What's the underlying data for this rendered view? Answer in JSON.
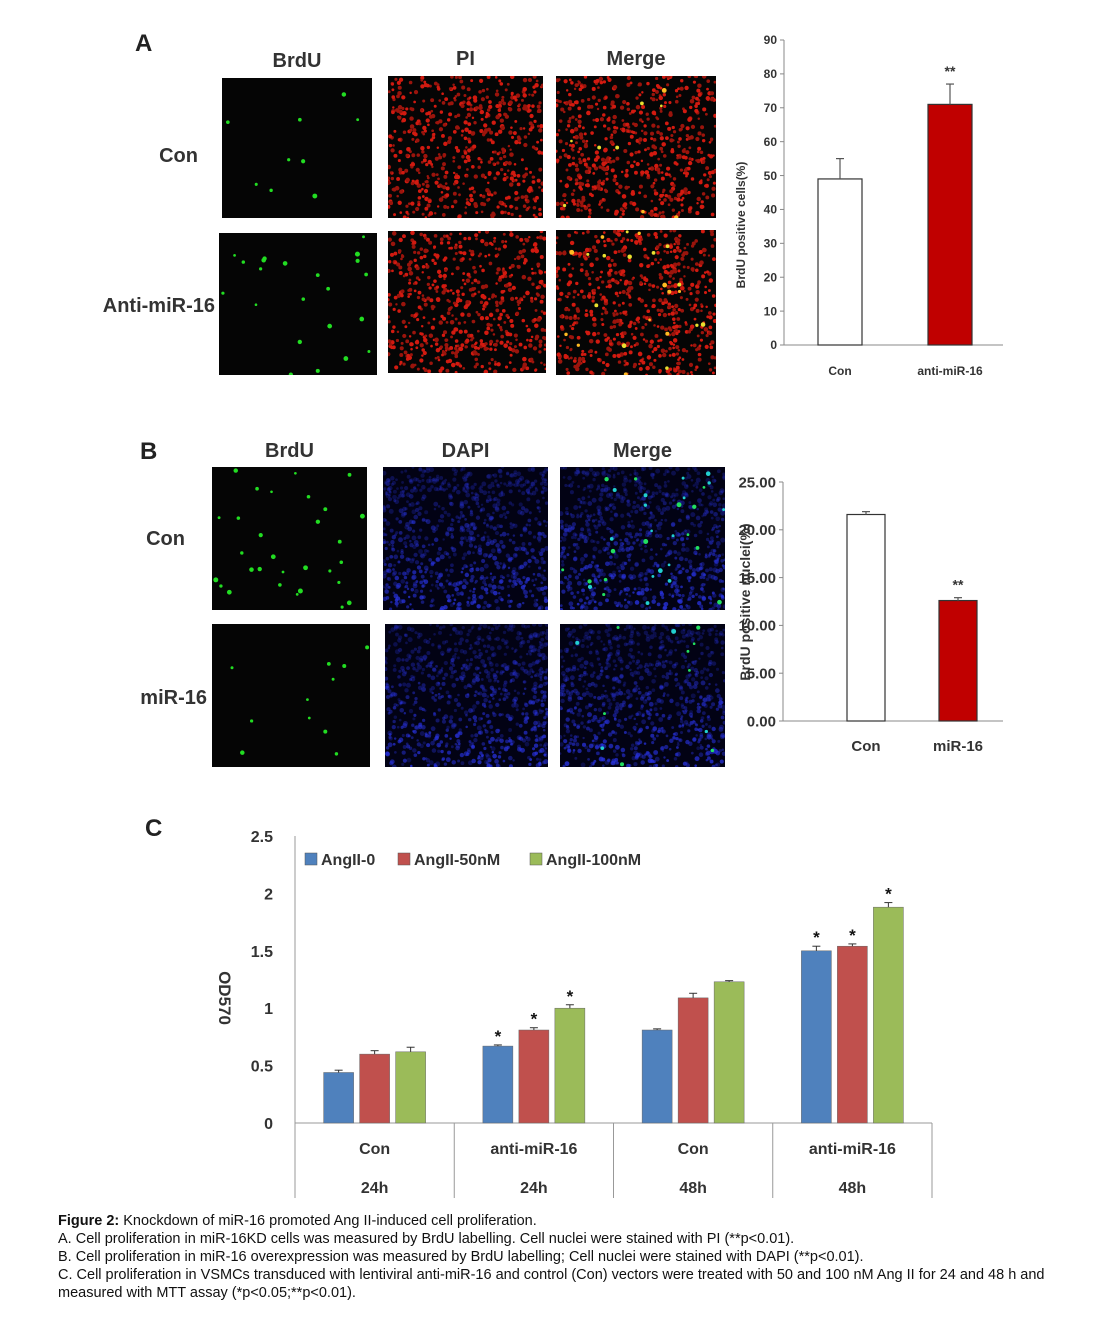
{
  "panelA": {
    "letter": "A",
    "columns": [
      "BrdU",
      "PI",
      "Merge"
    ],
    "rows": [
      "Con",
      "Anti-miR-16"
    ]
  },
  "panelB": {
    "letter": "B",
    "columns": [
      "BrdU",
      "DAPI",
      "Merge"
    ],
    "rows": [
      "Con",
      "miR-16"
    ]
  },
  "panelC": {
    "letter": "C"
  },
  "chart_data": [
    {
      "id": "A",
      "type": "bar",
      "categories": [
        "Con",
        "anti-miR-16"
      ],
      "values": [
        49,
        71
      ],
      "errors": [
        6,
        6
      ],
      "significance": [
        "",
        "**"
      ],
      "bar_colors": [
        "#ffffff",
        "#c00000"
      ],
      "ylabel": "BrdU positive cells(%)",
      "ylim": [
        0,
        90
      ],
      "yticks": [
        "0",
        "10",
        "20",
        "30",
        "40",
        "50",
        "60",
        "70",
        "80",
        "90"
      ],
      "grid": false
    },
    {
      "id": "B",
      "type": "bar",
      "categories": [
        "Con",
        "miR-16"
      ],
      "values": [
        21.6,
        12.6
      ],
      "errors": [
        0.3,
        0.3
      ],
      "significance": [
        "",
        "**"
      ],
      "bar_colors": [
        "#ffffff",
        "#c00000"
      ],
      "ylabel": "BrdU positive nuclei(%)",
      "ylim": [
        0,
        25
      ],
      "yticks": [
        "0.00",
        "5.00",
        "10.00",
        "15.00",
        "20.00",
        "25.00"
      ],
      "grid": false
    },
    {
      "id": "C",
      "type": "bar",
      "categories": [
        "Con",
        "anti-miR-16",
        "Con",
        "anti-miR-16"
      ],
      "category_times": [
        "24h",
        "24h",
        "48h",
        "48h"
      ],
      "series": [
        {
          "name": "AngII-0",
          "color": "#4f81bd",
          "values": [
            0.44,
            0.67,
            0.81,
            1.5
          ],
          "errors": [
            0.02,
            0.01,
            0.01,
            0.04
          ],
          "significance": [
            "",
            "*",
            "",
            "*"
          ]
        },
        {
          "name": "AngII-50nM",
          "color": "#c0504d",
          "values": [
            0.6,
            0.81,
            1.09,
            1.54
          ],
          "errors": [
            0.03,
            0.02,
            0.04,
            0.02
          ],
          "significance": [
            "",
            "*",
            "",
            "*"
          ]
        },
        {
          "name": "AngII-100nM",
          "color": "#9bbb59",
          "values": [
            0.62,
            1.0,
            1.23,
            1.88
          ],
          "errors": [
            0.04,
            0.03,
            0.01,
            0.04
          ],
          "significance": [
            "",
            "*",
            "",
            "*"
          ]
        }
      ],
      "ylabel": "OD570",
      "ylim": [
        0,
        2.5
      ],
      "yticks": [
        "0",
        "0.5",
        "1",
        "1.5",
        "2",
        "2.5"
      ],
      "legend": "top",
      "grid": false
    }
  ],
  "caption": {
    "title": "Figure 2:",
    "title_text": " Knockdown of miR-16 promoted Ang II-induced cell proliferation.",
    "lineA": "A. Cell proliferation in miR-16KD cells was measured by BrdU labelling. Cell nuclei were stained with PI (**p<0.01).",
    "lineB": "B. Cell proliferation in miR-16 overexpression was measured by BrdU labelling; Cell nuclei were stained with DAPI (**p<0.01).",
    "lineC": "C. Cell proliferation in VSMCs transduced with lentiviral anti-miR-16 and control (Con) vectors were treated with 50 and 100 nM Ang II for 24 and 48 h and measured with MTT assay (*p<0.05;**p<0.01)."
  }
}
